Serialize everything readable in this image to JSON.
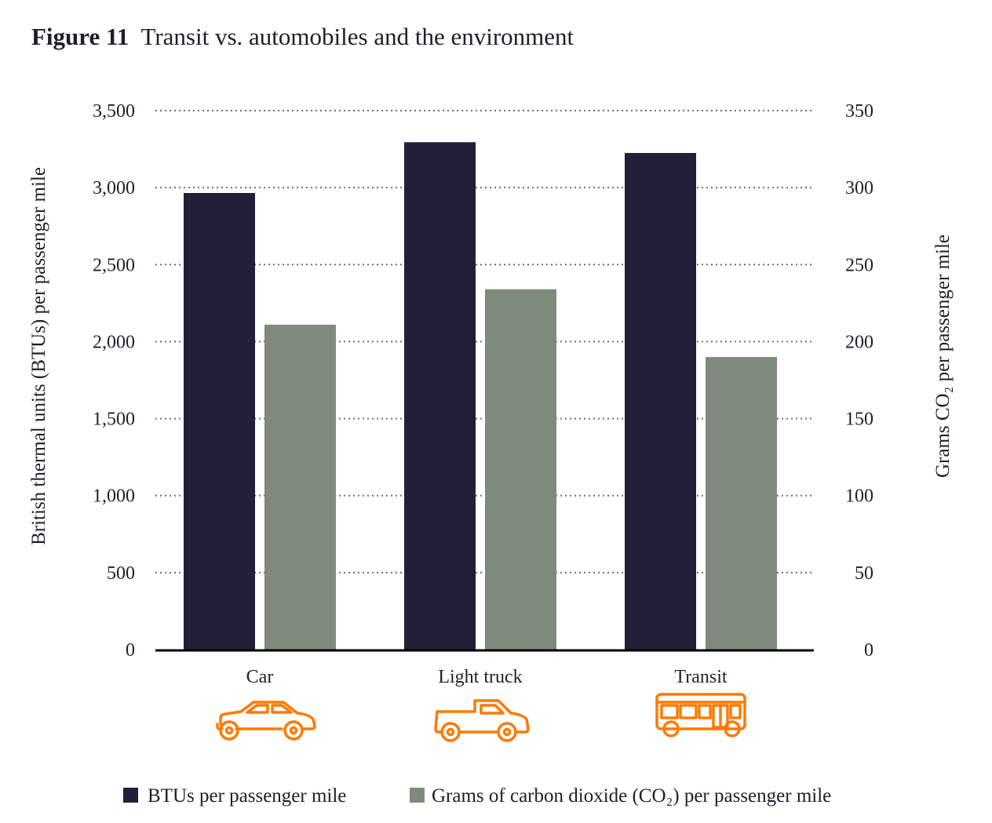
{
  "chart_data": {
    "type": "bar",
    "title_prefix": "Figure 11",
    "title": "Transit vs. automobiles and the environment",
    "categories": [
      "Car",
      "Light truck",
      "Transit"
    ],
    "category_icons": [
      "car-icon",
      "pickup-truck-icon",
      "bus-icon"
    ],
    "series": [
      {
        "name": "BTUs per passenger mile",
        "axis": "left",
        "color": "#231f38",
        "values": [
          2965,
          3295,
          3225
        ]
      },
      {
        "name": "Grams of carbon dioxide (CO₂) per passenger mile",
        "axis": "right",
        "color": "#808a7c",
        "values": [
          211,
          234,
          190
        ]
      }
    ],
    "ylabel": "British thermal units (BTUs) per passenger mile",
    "ylabel_right": "Grams CO₂ per passenger mile",
    "ylim": [
      0,
      3500
    ],
    "ylim_right": [
      0,
      350
    ],
    "yticks": [
      "0",
      "500",
      "1,000",
      "1,500",
      "2,000",
      "2,500",
      "3,000",
      "3,500"
    ],
    "yticks_right": [
      "0",
      "50",
      "100",
      "150",
      "200",
      "250",
      "300",
      "350"
    ],
    "grid": "dotted horizontal",
    "legend_position": "bottom",
    "icon_color": "#ff7a00"
  }
}
